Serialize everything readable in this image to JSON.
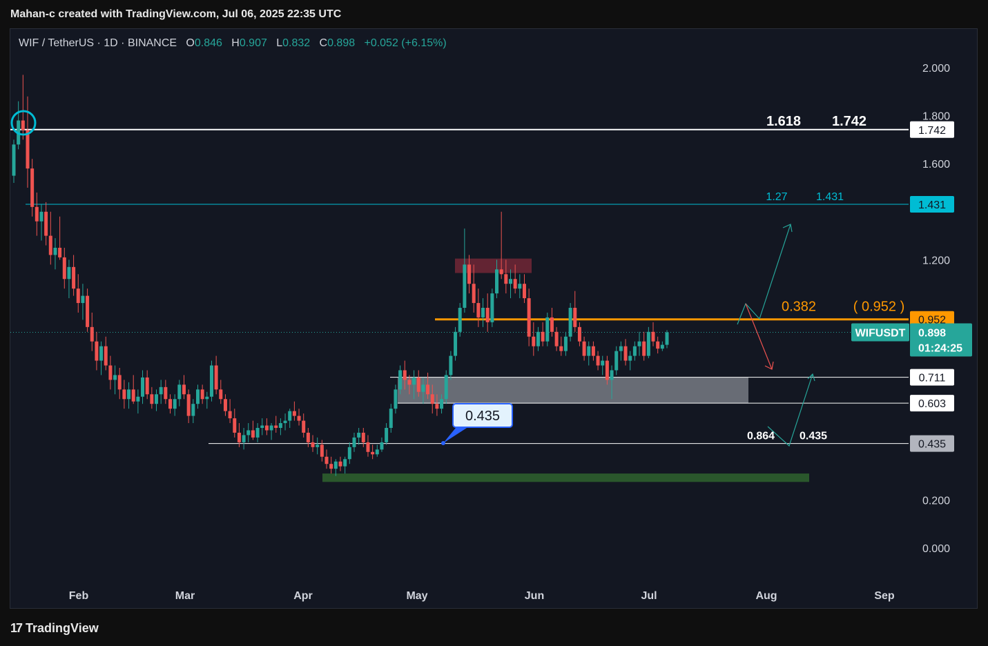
{
  "header": {
    "credit": "Mahan-c created with TradingView.com, Jul 06, 2025 22:35 UTC"
  },
  "legend": {
    "symbol": "WIF / TetherUS · 1D · BINANCE",
    "open_label": "O",
    "open": "0.846",
    "high_label": "H",
    "high": "0.907",
    "low_label": "L",
    "low": "0.832",
    "close_label": "C",
    "close": "0.898",
    "change": "+0.052 (+6.15%)"
  },
  "footer": {
    "brand": "TradingView",
    "brand_mark": "17"
  },
  "colors": {
    "up": "#26a69a",
    "down": "#ef5350",
    "orange": "#ff9800",
    "cyan": "#00bcd4",
    "resistance_zone": "#7f2a3a",
    "support_zone": "#d1d4dc",
    "accumulation_zone": "#2e5e2e"
  },
  "chart_data": {
    "type": "candlestick",
    "ylim": [
      -0.1,
      2.15
    ],
    "y_ticks": [
      "2.000",
      "1.800",
      "1.600",
      "1.200",
      "0.200",
      "0.000"
    ],
    "x_ticks": [
      "Feb",
      "Mar",
      "Apr",
      "May",
      "Jun",
      "Jul",
      "Aug",
      "Sep"
    ],
    "levels": [
      {
        "value": 1.742,
        "label": "1.742",
        "fib": "1.618",
        "fib_value": "1.742",
        "color": "#ffffff"
      },
      {
        "value": 1.431,
        "label": "1.431",
        "fib": "1.27",
        "fib_value": "1.431",
        "color": "#00bcd4"
      },
      {
        "value": 0.952,
        "label": "0.952",
        "fib": "0.382",
        "fib_value": "( 0.952 )",
        "color": "#ff9800"
      },
      {
        "value": 0.711,
        "label": "0.711",
        "color": "#ffffff"
      },
      {
        "value": 0.603,
        "label": "0.603",
        "color": "#ffffff"
      },
      {
        "value": 0.435,
        "label": "0.435",
        "fib": "0.864",
        "fib_value": "0.435",
        "color": "#ffffff"
      }
    ],
    "current_price": {
      "symbol": "WIFUSDT",
      "value": "0.898",
      "countdown": "01:24:25"
    },
    "callout": {
      "value": "0.435"
    },
    "candles_ohlc": [
      [
        1.55,
        1.7,
        1.52,
        1.68
      ],
      [
        1.68,
        1.86,
        1.66,
        1.78
      ],
      [
        1.78,
        1.97,
        1.7,
        1.74
      ],
      [
        1.74,
        1.88,
        1.5,
        1.58
      ],
      [
        1.58,
        1.62,
        1.38,
        1.42
      ],
      [
        1.42,
        1.48,
        1.3,
        1.36
      ],
      [
        1.36,
        1.43,
        1.28,
        1.4
      ],
      [
        1.4,
        1.44,
        1.26,
        1.3
      ],
      [
        1.3,
        1.4,
        1.18,
        1.22
      ],
      [
        1.22,
        1.29,
        1.16,
        1.25
      ],
      [
        1.25,
        1.38,
        1.2,
        1.21
      ],
      [
        1.21,
        1.25,
        1.08,
        1.12
      ],
      [
        1.12,
        1.2,
        1.04,
        1.17
      ],
      [
        1.17,
        1.22,
        1.05,
        1.08
      ],
      [
        1.08,
        1.14,
        0.98,
        1.02
      ],
      [
        1.02,
        1.1,
        0.95,
        1.05
      ],
      [
        1.05,
        1.08,
        0.9,
        0.92
      ],
      [
        0.92,
        0.98,
        0.82,
        0.86
      ],
      [
        0.86,
        0.9,
        0.74,
        0.78
      ],
      [
        0.78,
        0.86,
        0.72,
        0.84
      ],
      [
        0.84,
        0.88,
        0.74,
        0.76
      ],
      [
        0.76,
        0.8,
        0.66,
        0.7
      ],
      [
        0.7,
        0.76,
        0.64,
        0.72
      ],
      [
        0.72,
        0.75,
        0.62,
        0.66
      ],
      [
        0.66,
        0.7,
        0.58,
        0.62
      ],
      [
        0.62,
        0.69,
        0.58,
        0.66
      ],
      [
        0.66,
        0.72,
        0.6,
        0.61
      ],
      [
        0.61,
        0.66,
        0.56,
        0.63
      ],
      [
        0.63,
        0.74,
        0.6,
        0.71
      ],
      [
        0.71,
        0.74,
        0.62,
        0.64
      ],
      [
        0.64,
        0.67,
        0.58,
        0.6
      ],
      [
        0.6,
        0.66,
        0.57,
        0.64
      ],
      [
        0.64,
        0.7,
        0.6,
        0.67
      ],
      [
        0.67,
        0.7,
        0.6,
        0.62
      ],
      [
        0.62,
        0.64,
        0.56,
        0.58
      ],
      [
        0.58,
        0.64,
        0.55,
        0.62
      ],
      [
        0.62,
        0.7,
        0.59,
        0.68
      ],
      [
        0.68,
        0.72,
        0.62,
        0.64
      ],
      [
        0.64,
        0.66,
        0.52,
        0.55
      ],
      [
        0.55,
        0.62,
        0.52,
        0.6
      ],
      [
        0.6,
        0.68,
        0.58,
        0.66
      ],
      [
        0.66,
        0.68,
        0.6,
        0.62
      ],
      [
        0.62,
        0.65,
        0.58,
        0.63
      ],
      [
        0.63,
        0.78,
        0.61,
        0.76
      ],
      [
        0.76,
        0.8,
        0.64,
        0.66
      ],
      [
        0.66,
        0.7,
        0.6,
        0.62
      ],
      [
        0.62,
        0.64,
        0.55,
        0.57
      ],
      [
        0.57,
        0.62,
        0.52,
        0.54
      ],
      [
        0.54,
        0.58,
        0.46,
        0.48
      ],
      [
        0.48,
        0.52,
        0.42,
        0.44
      ],
      [
        0.44,
        0.5,
        0.41,
        0.47
      ],
      [
        0.47,
        0.52,
        0.44,
        0.49
      ],
      [
        0.49,
        0.53,
        0.45,
        0.46
      ],
      [
        0.46,
        0.52,
        0.44,
        0.5
      ],
      [
        0.5,
        0.54,
        0.47,
        0.51
      ],
      [
        0.51,
        0.54,
        0.47,
        0.49
      ],
      [
        0.49,
        0.52,
        0.45,
        0.51
      ],
      [
        0.51,
        0.55,
        0.48,
        0.5
      ],
      [
        0.5,
        0.54,
        0.47,
        0.52
      ],
      [
        0.52,
        0.56,
        0.49,
        0.53
      ],
      [
        0.53,
        0.58,
        0.5,
        0.57
      ],
      [
        0.57,
        0.61,
        0.53,
        0.55
      ],
      [
        0.55,
        0.58,
        0.51,
        0.53
      ],
      [
        0.53,
        0.56,
        0.46,
        0.48
      ],
      [
        0.48,
        0.5,
        0.42,
        0.44
      ],
      [
        0.44,
        0.47,
        0.4,
        0.42
      ],
      [
        0.42,
        0.46,
        0.39,
        0.43
      ],
      [
        0.43,
        0.45,
        0.36,
        0.38
      ],
      [
        0.38,
        0.41,
        0.33,
        0.35
      ],
      [
        0.35,
        0.38,
        0.31,
        0.33
      ],
      [
        0.33,
        0.37,
        0.3,
        0.36
      ],
      [
        0.36,
        0.38,
        0.32,
        0.34
      ],
      [
        0.34,
        0.38,
        0.31,
        0.37
      ],
      [
        0.37,
        0.44,
        0.35,
        0.42
      ],
      [
        0.42,
        0.48,
        0.4,
        0.46
      ],
      [
        0.46,
        0.5,
        0.43,
        0.48
      ],
      [
        0.48,
        0.5,
        0.42,
        0.44
      ],
      [
        0.44,
        0.47,
        0.38,
        0.4
      ],
      [
        0.4,
        0.43,
        0.37,
        0.39
      ],
      [
        0.39,
        0.43,
        0.38,
        0.41
      ],
      [
        0.41,
        0.46,
        0.4,
        0.44
      ],
      [
        0.44,
        0.52,
        0.43,
        0.5
      ],
      [
        0.5,
        0.6,
        0.48,
        0.58
      ],
      [
        0.58,
        0.68,
        0.56,
        0.66
      ],
      [
        0.66,
        0.76,
        0.64,
        0.74
      ],
      [
        0.74,
        0.78,
        0.66,
        0.7
      ],
      [
        0.7,
        0.72,
        0.64,
        0.68
      ],
      [
        0.68,
        0.74,
        0.62,
        0.71
      ],
      [
        0.71,
        0.74,
        0.63,
        0.65
      ],
      [
        0.65,
        0.71,
        0.6,
        0.68
      ],
      [
        0.68,
        0.73,
        0.62,
        0.64
      ],
      [
        0.64,
        0.68,
        0.56,
        0.6
      ],
      [
        0.6,
        0.64,
        0.55,
        0.58
      ],
      [
        0.58,
        0.64,
        0.56,
        0.62
      ],
      [
        0.62,
        0.74,
        0.6,
        0.72
      ],
      [
        0.72,
        0.82,
        0.7,
        0.8
      ],
      [
        0.8,
        0.92,
        0.78,
        0.9
      ],
      [
        0.9,
        1.02,
        0.88,
        1.0
      ],
      [
        1.0,
        1.33,
        0.98,
        1.18
      ],
      [
        1.18,
        1.22,
        1.06,
        1.1
      ],
      [
        1.1,
        1.18,
        0.98,
        1.02
      ],
      [
        1.02,
        1.08,
        0.92,
        0.96
      ],
      [
        0.96,
        1.04,
        0.92,
        1.0
      ],
      [
        1.0,
        1.06,
        0.9,
        0.94
      ],
      [
        0.94,
        1.08,
        0.92,
        1.06
      ],
      [
        1.06,
        1.2,
        1.04,
        1.16
      ],
      [
        1.16,
        1.4,
        1.12,
        1.14
      ],
      [
        1.14,
        1.2,
        1.06,
        1.1
      ],
      [
        1.1,
        1.16,
        1.04,
        1.12
      ],
      [
        1.12,
        1.18,
        1.06,
        1.08
      ],
      [
        1.08,
        1.14,
        1.04,
        1.1
      ],
      [
        1.1,
        1.14,
        1.02,
        1.04
      ],
      [
        1.04,
        1.08,
        0.84,
        0.88
      ],
      [
        0.88,
        0.94,
        0.8,
        0.84
      ],
      [
        0.84,
        0.92,
        0.82,
        0.9
      ],
      [
        0.9,
        0.94,
        0.84,
        0.86
      ],
      [
        0.86,
        0.98,
        0.84,
        0.96
      ],
      [
        0.96,
        1.0,
        0.88,
        0.9
      ],
      [
        0.9,
        0.92,
        0.82,
        0.84
      ],
      [
        0.84,
        0.88,
        0.8,
        0.82
      ],
      [
        0.82,
        0.9,
        0.8,
        0.88
      ],
      [
        0.88,
        1.02,
        0.86,
        1.0
      ],
      [
        1.0,
        1.07,
        0.9,
        0.92
      ],
      [
        0.92,
        0.94,
        0.84,
        0.86
      ],
      [
        0.86,
        0.88,
        0.78,
        0.8
      ],
      [
        0.8,
        0.86,
        0.76,
        0.84
      ],
      [
        0.84,
        0.86,
        0.78,
        0.8
      ],
      [
        0.8,
        0.82,
        0.74,
        0.76
      ],
      [
        0.76,
        0.8,
        0.72,
        0.78
      ],
      [
        0.78,
        0.8,
        0.68,
        0.7
      ],
      [
        0.7,
        0.76,
        0.62,
        0.74
      ],
      [
        0.74,
        0.84,
        0.72,
        0.82
      ],
      [
        0.82,
        0.86,
        0.78,
        0.84
      ],
      [
        0.84,
        0.87,
        0.76,
        0.78
      ],
      [
        0.78,
        0.82,
        0.74,
        0.8
      ],
      [
        0.8,
        0.86,
        0.78,
        0.84
      ],
      [
        0.84,
        0.9,
        0.8,
        0.86
      ],
      [
        0.86,
        0.9,
        0.78,
        0.8
      ],
      [
        0.8,
        0.92,
        0.79,
        0.9
      ],
      [
        0.9,
        0.94,
        0.84,
        0.86
      ],
      [
        0.86,
        0.88,
        0.81,
        0.83
      ],
      [
        0.83,
        0.86,
        0.82,
        0.846
      ],
      [
        0.846,
        0.907,
        0.832,
        0.898
      ]
    ]
  }
}
